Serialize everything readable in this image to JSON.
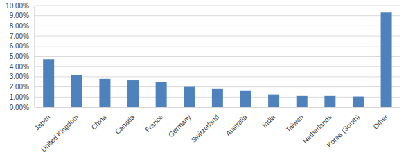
{
  "chart_data": {
    "type": "bar",
    "categories": [
      "Japan",
      "United Kingdom",
      "China",
      "Canada",
      "France",
      "Germany",
      "Switzerland",
      "Australia",
      "India",
      "Taiwan",
      "Netherlands",
      "Korea (South)",
      "Other"
    ],
    "values": [
      4.75,
      3.2,
      2.8,
      2.65,
      2.45,
      2.0,
      1.85,
      1.65,
      1.25,
      1.1,
      1.1,
      1.05,
      9.3
    ],
    "color": "#4f81bd",
    "ylim": [
      0,
      10
    ],
    "yticks": [
      {
        "value": 0,
        "label": "0.00%"
      },
      {
        "value": 1,
        "label": "1.00%"
      },
      {
        "value": 2,
        "label": "2.00%"
      },
      {
        "value": 3,
        "label": "3.00%"
      },
      {
        "value": 4,
        "label": "4.00%"
      },
      {
        "value": 5,
        "label": "5.00%"
      },
      {
        "value": 6,
        "label": "6.00%"
      },
      {
        "value": 7,
        "label": "7.00%"
      },
      {
        "value": 8,
        "label": "8.00%"
      },
      {
        "value": 9,
        "label": "9.00%"
      },
      {
        "value": 10,
        "label": "10.00%"
      }
    ],
    "grid": true
  }
}
